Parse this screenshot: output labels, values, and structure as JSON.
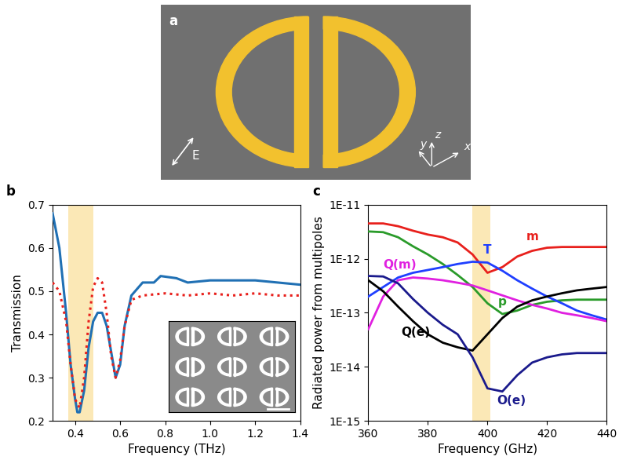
{
  "diagram": {
    "panel": "a",
    "field_label": "E",
    "axes_labels": [
      "x",
      "y",
      "z"
    ]
  },
  "chart_data": [
    {
      "type": "line",
      "panel": "b",
      "x_label": "Frequency (THz)",
      "y_label": "Transmission",
      "xlim": [
        0.3,
        1.4
      ],
      "xticks": [
        0.4,
        0.6,
        0.8,
        1.0,
        1.2,
        1.4
      ],
      "ylim": [
        0.2,
        0.7
      ],
      "yticks": [
        0.2,
        0.3,
        0.4,
        0.5,
        0.6,
        0.7
      ],
      "band": [
        0.37,
        0.48
      ],
      "series": [
        {
          "color": "#2070b4",
          "line_style": "solid",
          "x": [
            0.3,
            0.33,
            0.36,
            0.38,
            0.4,
            0.41,
            0.42,
            0.44,
            0.46,
            0.48,
            0.5,
            0.52,
            0.54,
            0.56,
            0.58,
            0.6,
            0.62,
            0.65,
            0.7,
            0.75,
            0.78,
            0.85,
            0.9,
            1.0,
            1.1,
            1.2,
            1.3,
            1.4
          ],
          "values": [
            0.68,
            0.6,
            0.45,
            0.33,
            0.25,
            0.22,
            0.22,
            0.27,
            0.37,
            0.43,
            0.45,
            0.45,
            0.42,
            0.36,
            0.3,
            0.33,
            0.42,
            0.49,
            0.52,
            0.52,
            0.535,
            0.53,
            0.52,
            0.525,
            0.525,
            0.525,
            0.52,
            0.515
          ]
        },
        {
          "color": "#e8201c",
          "line_style": "dotted",
          "x": [
            0.3,
            0.33,
            0.36,
            0.38,
            0.4,
            0.42,
            0.44,
            0.46,
            0.48,
            0.5,
            0.52,
            0.54,
            0.56,
            0.58,
            0.6,
            0.62,
            0.65,
            0.7,
            0.8,
            0.9,
            1.0,
            1.1,
            1.2,
            1.3,
            1.4
          ],
          "values": [
            0.52,
            0.5,
            0.43,
            0.33,
            0.25,
            0.23,
            0.3,
            0.43,
            0.51,
            0.53,
            0.52,
            0.45,
            0.35,
            0.3,
            0.34,
            0.42,
            0.48,
            0.49,
            0.495,
            0.49,
            0.495,
            0.49,
            0.495,
            0.49,
            0.49
          ]
        }
      ]
    },
    {
      "type": "line",
      "panel": "c",
      "log": "y",
      "x_label": "Frequency (GHz)",
      "y_label": "Radiated power from multipoles",
      "xlim": [
        360,
        440
      ],
      "xticks": [
        360,
        380,
        400,
        420,
        440
      ],
      "ylim": [
        1e-15,
        1e-11
      ],
      "yticks": [
        {
          "value": 1e-15,
          "label": "1E-15"
        },
        {
          "value": 1e-14,
          "label": "1E-14"
        },
        {
          "value": 1e-13,
          "label": "1E-13"
        },
        {
          "value": 1e-12,
          "label": "1E-12"
        },
        {
          "value": 1e-11,
          "label": "1E-11"
        }
      ],
      "band": [
        395,
        401
      ],
      "x": [
        360,
        365,
        370,
        375,
        380,
        385,
        390,
        395,
        400,
        405,
        410,
        415,
        420,
        425,
        430,
        435,
        440
      ],
      "series": [
        {
          "name": "m",
          "color": "#e8201c",
          "values": [
            4.5e-12,
            4.5e-12,
            4e-12,
            3.3e-12,
            2.8e-12,
            2.5e-12,
            2e-12,
            1.2e-12,
            5.5e-13,
            7e-13,
            1.1e-12,
            1.4e-12,
            1.6e-12,
            1.65e-12,
            1.65e-12,
            1.65e-12,
            1.65e-12
          ]
        },
        {
          "name": "p",
          "color": "#2a9b2a",
          "values": [
            3.2e-12,
            3.1e-12,
            2.5e-12,
            1.7e-12,
            1.2e-12,
            8e-13,
            5e-13,
            3e-13,
            1.5e-13,
            9.5e-14,
            1.1e-13,
            1.4e-13,
            1.6e-13,
            1.7e-13,
            1.75e-13,
            1.75e-13,
            1.75e-13
          ]
        },
        {
          "name": "T",
          "color": "#1f3fff",
          "values": [
            2e-13,
            3e-13,
            4.5e-13,
            5.5e-13,
            6.2e-13,
            7e-13,
            8e-13,
            8.8e-13,
            8.5e-13,
            6e-13,
            4e-13,
            2.8e-13,
            2e-13,
            1.5e-13,
            1.1e-13,
            9e-14,
            7.5e-14
          ]
        },
        {
          "name": "Q(m)",
          "color": "#e020e0",
          "values": [
            5e-14,
            2e-13,
            4e-13,
            4.5e-13,
            4.3e-13,
            4e-13,
            3.6e-13,
            3.2e-13,
            2.6e-13,
            2.1e-13,
            1.7e-13,
            1.4e-13,
            1.2e-13,
            1e-13,
            9e-14,
            8e-14,
            7e-14
          ]
        },
        {
          "name": "Q(e)",
          "color": "#000000",
          "values": [
            4e-13,
            2.5e-13,
            1.3e-13,
            7e-14,
            4e-14,
            2.8e-14,
            2.3e-14,
            2e-14,
            4e-14,
            8e-14,
            1.3e-13,
            1.7e-13,
            2e-13,
            2.3e-13,
            2.6e-13,
            2.8e-13,
            3e-13
          ]
        },
        {
          "name": "O(e)",
          "color": "#1a1a8c",
          "values": [
            4.8e-13,
            4.7e-13,
            3.5e-13,
            1.8e-13,
            1e-13,
            6e-14,
            4e-14,
            1.5e-14,
            4e-15,
            3.5e-15,
            7e-15,
            1.2e-14,
            1.5e-14,
            1.7e-14,
            1.8e-14,
            1.8e-14,
            1.8e-14
          ]
        }
      ]
    }
  ]
}
